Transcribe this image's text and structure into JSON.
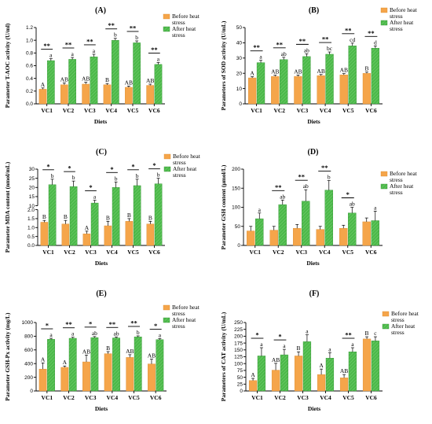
{
  "figure": {
    "colors": {
      "before": "#f5a54a",
      "after": "#4cb94a"
    },
    "category_axis_label": "Diets"
  },
  "chart_data": [
    {
      "id": "A",
      "type": "bar",
      "panel_label": "(A)",
      "ylabel": "Parameter T-AOC activity (U/ml)",
      "xlabel": "Diets",
      "categories": [
        "VC1",
        "VC2",
        "VC3",
        "VC4",
        "VC5",
        "VC6"
      ],
      "ylim": [
        0,
        1.2
      ],
      "yticks": [
        "0.0",
        "0.2",
        "0.4",
        "0.6",
        "0.8",
        "1.0",
        "1.2"
      ],
      "yticks_values": [
        0,
        0.2,
        0.4,
        0.6,
        0.8,
        1.0,
        1.2
      ],
      "legend": [
        "Before heat stress",
        "After heat stress"
      ],
      "legend_placement": "right",
      "series": [
        {
          "name": "Before heat stress",
          "values": [
            0.23,
            0.3,
            0.31,
            0.3,
            0.26,
            0.29
          ],
          "errors": [
            0.02,
            0.03,
            0.03,
            0.02,
            0.02,
            0.02
          ],
          "letters": [
            "A",
            "AB",
            "AB",
            "B",
            "AB",
            "AB"
          ]
        },
        {
          "name": "After heat stress",
          "values": [
            0.68,
            0.7,
            0.74,
            1.0,
            0.96,
            0.62
          ],
          "errors": [
            0.03,
            0.03,
            0.04,
            0.03,
            0.03,
            0.03
          ],
          "letters": [
            "a",
            "a",
            "a",
            "b",
            "b",
            "a"
          ]
        }
      ],
      "significance": [
        "**",
        "**",
        "**",
        "**",
        "**",
        "**"
      ]
    },
    {
      "id": "B",
      "type": "bar",
      "panel_label": "(B)",
      "ylabel": "Parameters of SOD activity (U/mL)",
      "xlabel": "Diets",
      "categories": [
        "VC1",
        "VC2",
        "VC3",
        "VC4",
        "VC5",
        "VC6"
      ],
      "ylim": [
        0,
        50
      ],
      "yticks": [
        "0",
        "10",
        "20",
        "30",
        "40",
        "50"
      ],
      "yticks_values": [
        0,
        10,
        20,
        30,
        40,
        50
      ],
      "legend": [
        "Before heat stress",
        "After heat stress"
      ],
      "legend_placement": "right",
      "series": [
        {
          "name": "Before heat stress",
          "values": [
            17,
            18,
            18,
            18.5,
            19,
            20
          ],
          "errors": [
            0.8,
            0.8,
            0.9,
            0.7,
            0.8,
            0.8
          ],
          "letters": [
            "A",
            "AB",
            "AB",
            "AB",
            "AB",
            "B"
          ]
        },
        {
          "name": "After heat stress",
          "values": [
            27,
            29,
            31,
            32.5,
            38,
            36.5
          ],
          "errors": [
            1.5,
            1.5,
            1.8,
            1.5,
            1.8,
            1.5
          ],
          "letters": [
            "a",
            "ab",
            "ab",
            "bc",
            "cd",
            "d"
          ]
        }
      ],
      "significance": [
        "**",
        "**",
        "**",
        "**",
        "**",
        "**"
      ]
    },
    {
      "id": "C",
      "type": "bar",
      "panel_label": "(C)",
      "ylabel": "Parameter MDA content (nmol/mL)",
      "xlabel": "Diets",
      "categories": [
        "VC1",
        "VC2",
        "VC3",
        "VC4",
        "VC5",
        "VC6"
      ],
      "ylim": [
        0,
        30
      ],
      "axis_break": [
        2,
        10
      ],
      "yticks": [
        "0.0",
        "0.5",
        "1.0",
        "1.5",
        "2.0",
        "10",
        "15",
        "20",
        "25",
        "30"
      ],
      "yticks_values": [
        0,
        0.5,
        1,
        1.5,
        2,
        10,
        15,
        20,
        25,
        30
      ],
      "legend": [
        "Before heat stress",
        "After heat stress"
      ],
      "legend_placement": "right",
      "series": [
        {
          "name": "Before heat stress",
          "values": [
            1.3,
            1.2,
            0.65,
            1.1,
            1.35,
            1.2
          ],
          "errors": [
            0.1,
            0.2,
            0.15,
            0.25,
            0.15,
            0.15
          ],
          "letters": [
            "B",
            "B",
            "A",
            "B",
            "B",
            "B"
          ]
        },
        {
          "name": "After heat stress",
          "values": [
            21.5,
            20.5,
            11.5,
            20,
            21,
            22
          ],
          "errors": [
            3,
            3,
            1.5,
            3,
            3.5,
            3
          ],
          "letters": [
            "b",
            "b",
            "a",
            "b",
            "b",
            "b"
          ]
        }
      ],
      "significance": [
        "*",
        "*",
        "*",
        "*",
        "*",
        "*"
      ]
    },
    {
      "id": "D",
      "type": "bar",
      "panel_label": "(D)",
      "ylabel": "Parameter GSH content (μmol/L)",
      "xlabel": "Diets",
      "categories": [
        "VC1",
        "VC2",
        "VC3",
        "VC4",
        "VC5",
        "VC6"
      ],
      "ylim": [
        0,
        200
      ],
      "yticks": [
        "0",
        "50",
        "100",
        "150",
        "200"
      ],
      "yticks_values": [
        0,
        50,
        100,
        150,
        200
      ],
      "legend": [
        "Before heat stress",
        "After heat stress"
      ],
      "legend_placement": "right",
      "series": [
        {
          "name": "Before heat stress",
          "values": [
            38,
            40,
            45,
            42,
            45,
            62
          ],
          "errors": [
            12,
            10,
            10,
            8,
            8,
            10
          ],
          "letters": [
            "",
            "",
            "",
            "",
            "",
            ""
          ]
        },
        {
          "name": "After heat stress",
          "values": [
            70,
            107,
            116,
            145,
            85,
            65
          ],
          "errors": [
            15,
            12,
            30,
            25,
            15,
            25
          ],
          "letters": [
            "a",
            "ab",
            "ab",
            "b",
            "ab",
            "a"
          ]
        }
      ],
      "significance": [
        "",
        "**",
        "**",
        "**",
        "*",
        ""
      ]
    },
    {
      "id": "E",
      "type": "bar",
      "panel_label": "(E)",
      "ylabel": "Parameter GSH-Px activity (mg/L)",
      "xlabel": "Diets",
      "categories": [
        "VC1",
        "VC2",
        "VC3",
        "VC4",
        "VC5",
        "VC6"
      ],
      "ylim": [
        0,
        1000
      ],
      "yticks": [
        "0",
        "200",
        "400",
        "600",
        "800",
        "1000"
      ],
      "yticks_values": [
        0,
        200,
        400,
        600,
        800,
        1000
      ],
      "legend": [
        "Before heat stress",
        "After heat stress"
      ],
      "legend_placement": "right",
      "series": [
        {
          "name": "Before heat stress",
          "values": [
            320,
            345,
            425,
            545,
            490,
            395
          ],
          "errors": [
            90,
            20,
            100,
            30,
            40,
            70
          ],
          "letters": [
            "A",
            "A",
            "AB",
            "B",
            "AB",
            "AB"
          ]
        },
        {
          "name": "After heat stress",
          "values": [
            755,
            770,
            780,
            775,
            790,
            750
          ],
          "errors": [
            15,
            15,
            15,
            15,
            15,
            15
          ],
          "letters": [
            "a",
            "a",
            "ab",
            "ab",
            "b",
            "a"
          ]
        }
      ],
      "significance": [
        "*",
        "**",
        "*",
        "**",
        "**",
        "*"
      ]
    },
    {
      "id": "F",
      "type": "bar",
      "panel_label": "(F)",
      "ylabel": "Parameters of CAT activity (U/mL)",
      "xlabel": "Diets",
      "categories": [
        "VC1",
        "VC2",
        "VC3",
        "VC4",
        "VC5",
        "VC6"
      ],
      "ylim": [
        0,
        250
      ],
      "yticks": [
        "0",
        "25",
        "50",
        "75",
        "100",
        "125",
        "150",
        "175",
        "200",
        "225",
        "250"
      ],
      "yticks_values": [
        0,
        25,
        50,
        75,
        100,
        125,
        150,
        175,
        200,
        225,
        250
      ],
      "legend": [
        "Before heat stress",
        "After heat stress"
      ],
      "legend_placement": "right",
      "series": [
        {
          "name": "Before heat stress",
          "values": [
            38,
            76,
            128,
            60,
            48,
            190
          ],
          "errors": [
            8,
            25,
            15,
            20,
            12,
            8
          ],
          "letters": [
            "A",
            "AB",
            "B",
            "A",
            "AB",
            "B"
          ]
        },
        {
          "name": "After heat stress",
          "values": [
            128,
            132,
            180,
            120,
            143,
            183
          ],
          "errors": [
            30,
            20,
            25,
            20,
            15,
            15
          ],
          "letters": [
            "a",
            "a",
            "a",
            "a",
            "a",
            "c"
          ]
        }
      ],
      "significance": [
        "*",
        "*",
        "",
        "",
        "**",
        ""
      ]
    }
  ]
}
